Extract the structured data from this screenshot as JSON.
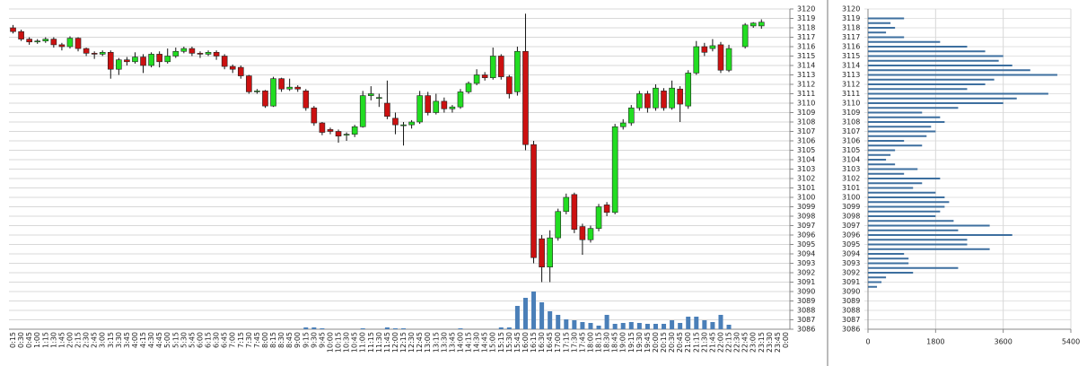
{
  "chart_data": [
    {
      "type": "candlestick",
      "categories": [
        "0:15",
        "0:30",
        "0:45",
        "1:00",
        "1:15",
        "1:30",
        "1:45",
        "2:00",
        "2:15",
        "2:30",
        "2:45",
        "3:00",
        "3:15",
        "3:30",
        "3:45",
        "4:00",
        "4:15",
        "4:30",
        "4:45",
        "5:00",
        "5:15",
        "5:30",
        "5:45",
        "6:00",
        "6:15",
        "6:30",
        "6:45",
        "7:00",
        "7:15",
        "7:30",
        "7:45",
        "8:00",
        "8:15",
        "8:30",
        "8:45",
        "9:00",
        "9:15",
        "9:30",
        "9:45",
        "10:00",
        "10:15",
        "10:30",
        "10:45",
        "11:00",
        "11:15",
        "11:30",
        "11:45",
        "12:00",
        "12:15",
        "12:30",
        "12:45",
        "13:00",
        "13:15",
        "13:30",
        "13:45",
        "14:00",
        "14:15",
        "14:30",
        "14:45",
        "15:00",
        "15:15",
        "15:30",
        "15:45",
        "16:00",
        "16:15",
        "16:30",
        "16:45",
        "17:00",
        "17:15",
        "17:30",
        "17:45",
        "18:00",
        "18:15",
        "18:30",
        "18:45",
        "19:00",
        "19:15",
        "19:30",
        "19:45",
        "20:00",
        "20:15",
        "20:30",
        "20:45",
        "21:00",
        "21:15",
        "21:30",
        "21:45",
        "22:00",
        "22:15",
        "22:30",
        "22:45",
        "23:00",
        "23:15",
        "23:30",
        "23:45",
        "0:00"
      ],
      "open": [
        3118.0,
        3117.6,
        3116.8,
        3116.5,
        3116.6,
        3116.8,
        3116.2,
        3116.0,
        3116.9,
        3115.8,
        3115.3,
        3115.2,
        3115.4,
        3113.6,
        3114.6,
        3114.4,
        3114.9,
        3114.0,
        3115.2,
        3114.4,
        3115.0,
        3115.5,
        3115.8,
        3115.3,
        3115.2,
        3115.4,
        3115.0,
        3113.9,
        3113.8,
        3112.9,
        3111.2,
        3111.3,
        3109.7,
        3112.6,
        3111.5,
        3111.7,
        3111.3,
        3109.5,
        3107.9,
        3107.2,
        3107.0,
        3106.6,
        3106.7,
        3107.5,
        3110.8,
        3110.5,
        3110.0,
        3108.4,
        3107.7,
        3107.7,
        3108.0,
        3110.8,
        3109.0,
        3110.2,
        3109.4,
        3109.6,
        3111.2,
        3112.1,
        3113.0,
        3112.7,
        3115.0,
        3112.8,
        3111.2,
        3115.5,
        3105.6,
        3095.6,
        3092.6,
        3095.7,
        3098.5,
        3100.3,
        3096.9,
        3095.5,
        3096.7,
        3099.2,
        3098.4,
        3107.5,
        3107.9,
        3109.5,
        3111.0,
        3109.5,
        3111.3,
        3109.5,
        3111.5,
        3109.7,
        3113.2,
        3116.0,
        3115.8,
        3116.2,
        3113.5,
        null,
        3116.0,
        3118.2,
        3118.2,
        null,
        null,
        null
      ],
      "close": [
        3117.6,
        3116.8,
        3116.5,
        3116.6,
        3116.8,
        3116.2,
        3116.0,
        3116.9,
        3115.8,
        3115.3,
        3115.2,
        3115.4,
        3113.6,
        3114.6,
        3114.4,
        3114.9,
        3114.0,
        3115.2,
        3114.4,
        3115.0,
        3115.5,
        3115.8,
        3115.3,
        3115.2,
        3115.4,
        3115.0,
        3113.9,
        3113.6,
        3112.9,
        3111.2,
        3111.3,
        3109.7,
        3112.6,
        3111.5,
        3111.7,
        3111.5,
        3109.5,
        3107.9,
        3106.9,
        3107.0,
        3106.5,
        3106.7,
        3107.5,
        3110.8,
        3111.0,
        3110.6,
        3108.6,
        3107.7,
        3107.7,
        3108.0,
        3110.8,
        3109.0,
        3110.2,
        3109.4,
        3109.6,
        3111.2,
        3112.1,
        3113.0,
        3112.7,
        3115.0,
        3112.8,
        3111.0,
        3115.5,
        3105.6,
        3093.6,
        3092.6,
        3095.7,
        3098.5,
        3100.0,
        3096.6,
        3095.5,
        3096.7,
        3099.0,
        3098.4,
        3107.5,
        3107.9,
        3109.5,
        3111.0,
        3109.5,
        3111.6,
        3109.5,
        3111.6,
        3109.9,
        3113.2,
        3116.0,
        3115.4,
        3116.1,
        3113.5,
        3115.8,
        null,
        3118.3,
        3118.5,
        3118.6,
        null,
        null,
        null
      ],
      "high": [
        3118.3,
        3117.8,
        3117.0,
        3116.8,
        3117.0,
        3117.0,
        3116.4,
        3117.1,
        3117.0,
        3115.9,
        3115.5,
        3115.6,
        3115.6,
        3114.8,
        3114.9,
        3115.4,
        3115.2,
        3115.4,
        3115.5,
        3115.8,
        3115.9,
        3116.0,
        3116.0,
        3115.5,
        3115.6,
        3115.6,
        3115.2,
        3114.1,
        3114.0,
        3113.0,
        3111.5,
        3111.4,
        3112.8,
        3112.7,
        3112.6,
        3111.9,
        3111.5,
        3109.7,
        3108.0,
        3107.4,
        3107.2,
        3106.9,
        3107.7,
        3111.3,
        3111.8,
        3111.0,
        3112.4,
        3109.0,
        3108.0,
        3108.2,
        3111.3,
        3111.2,
        3111.0,
        3110.6,
        3109.8,
        3111.5,
        3112.3,
        3113.6,
        3113.3,
        3115.9,
        3115.2,
        3113.0,
        3116.0,
        3119.5,
        3106.0,
        3096.0,
        3096.5,
        3098.8,
        3100.4,
        3100.5,
        3097.2,
        3097.0,
        3099.3,
        3099.5,
        3107.8,
        3108.3,
        3109.8,
        3111.3,
        3111.3,
        3112.0,
        3111.6,
        3112.4,
        3111.8,
        3113.5,
        3116.6,
        3116.4,
        3116.8,
        3116.5,
        3116.2,
        null,
        3118.5,
        3118.6,
        3118.9,
        null,
        null,
        null
      ],
      "low": [
        3117.4,
        3116.6,
        3116.2,
        3116.3,
        3116.4,
        3115.9,
        3115.6,
        3115.8,
        3115.5,
        3115.0,
        3114.7,
        3115.0,
        3112.6,
        3113.0,
        3114.0,
        3114.2,
        3113.2,
        3113.8,
        3113.8,
        3114.2,
        3114.8,
        3115.3,
        3115.0,
        3114.8,
        3115.0,
        3114.6,
        3113.6,
        3113.2,
        3112.6,
        3111.0,
        3111.0,
        3109.5,
        3109.6,
        3111.2,
        3111.3,
        3111.2,
        3109.2,
        3107.6,
        3106.6,
        3106.7,
        3105.8,
        3106.0,
        3106.4,
        3107.4,
        3110.3,
        3109.6,
        3108.3,
        3106.7,
        3105.5,
        3107.3,
        3107.8,
        3108.7,
        3108.8,
        3109.0,
        3109.0,
        3109.4,
        3111.0,
        3111.9,
        3112.4,
        3112.5,
        3112.5,
        3110.5,
        3110.8,
        3105.0,
        3093.0,
        3091.0,
        3091.0,
        3095.4,
        3098.2,
        3096.2,
        3093.9,
        3095.2,
        3096.4,
        3098.0,
        3098.2,
        3107.2,
        3107.6,
        3109.2,
        3109.0,
        3109.2,
        3109.2,
        3109.3,
        3108.0,
        3109.4,
        3113.0,
        3115.0,
        3115.5,
        3113.2,
        3113.3,
        null,
        3115.8,
        3118.0,
        3117.9,
        null,
        null,
        null
      ],
      "volume": [
        0,
        0,
        0,
        0,
        0,
        0,
        0,
        0,
        0,
        0,
        0,
        0,
        0,
        0,
        0,
        0,
        0,
        0,
        0,
        0,
        0,
        0,
        0,
        0,
        0,
        0,
        0,
        0,
        0,
        0,
        0,
        0,
        0,
        0,
        0,
        0,
        400,
        400,
        200,
        0,
        0,
        0,
        0,
        200,
        0,
        0,
        400,
        200,
        200,
        0,
        0,
        0,
        0,
        0,
        0,
        200,
        0,
        0,
        0,
        0,
        400,
        400,
        5200,
        7000,
        8400,
        6000,
        4000,
        3200,
        2200,
        2000,
        1600,
        1400,
        800,
        3200,
        1200,
        1400,
        1600,
        1400,
        1200,
        1200,
        1200,
        2000,
        1400,
        2800,
        2800,
        2000,
        1600,
        3200,
        1000,
        null,
        0,
        0,
        0,
        null,
        null,
        null
      ],
      "up_color": "#22dd22",
      "down_color": "#cc1111",
      "volume_color": "#4a7fb8",
      "ylim": [
        3086,
        3120
      ],
      "yticks": [
        3086,
        3087,
        3088,
        3089,
        3090,
        3091,
        3092,
        3093,
        3094,
        3095,
        3096,
        3097,
        3098,
        3099,
        3100,
        3101,
        3102,
        3103,
        3104,
        3105,
        3106,
        3107,
        3108,
        3109,
        3110,
        3111,
        3112,
        3113,
        3114,
        3115,
        3116,
        3117,
        3118,
        3119,
        3120
      ],
      "grid": true
    },
    {
      "type": "barh",
      "y": [
        3119,
        3118.5,
        3118,
        3117.5,
        3117,
        3116.5,
        3116,
        3115.5,
        3115,
        3114.5,
        3114,
        3113.5,
        3113,
        3112.5,
        3112,
        3111.5,
        3111,
        3110.5,
        3110,
        3109.5,
        3109,
        3108.5,
        3108,
        3107.5,
        3107,
        3106.5,
        3106,
        3105.5,
        3105,
        3104.5,
        3104,
        3103.5,
        3103,
        3102.5,
        3102,
        3101.5,
        3101,
        3100.5,
        3100,
        3099.5,
        3099,
        3098.5,
        3098,
        3097.5,
        3097,
        3096.5,
        3096,
        3095.5,
        3095,
        3094.5,
        3094,
        3093.5,
        3093,
        3092.5,
        3092,
        3091.5,
        3091,
        3090.5
      ],
      "values": [
        960,
        600,
        720,
        480,
        960,
        1920,
        2640,
        3120,
        3600,
        3480,
        3840,
        4320,
        5040,
        3360,
        3120,
        2640,
        4800,
        3960,
        3600,
        2400,
        1440,
        1920,
        2040,
        1680,
        1800,
        1560,
        960,
        1440,
        720,
        600,
        480,
        720,
        1320,
        960,
        1920,
        1440,
        1200,
        1800,
        2040,
        2160,
        2040,
        1920,
        1800,
        2280,
        3240,
        2400,
        3840,
        2640,
        2640,
        3240,
        960,
        1080,
        1080,
        2400,
        1200,
        480,
        360,
        240
      ],
      "color": "#3d6f9f",
      "xlim": [
        0,
        5400
      ],
      "xticks": [
        0,
        1800,
        3600,
        5400
      ],
      "ylim": [
        3086,
        3120
      ],
      "yticks": [
        3086,
        3087,
        3088,
        3089,
        3090,
        3091,
        3092,
        3093,
        3094,
        3095,
        3096,
        3097,
        3098,
        3099,
        3100,
        3101,
        3102,
        3103,
        3104,
        3105,
        3106,
        3107,
        3108,
        3109,
        3110,
        3111,
        3112,
        3113,
        3114,
        3115,
        3116,
        3117,
        3118,
        3119,
        3120
      ],
      "grid": true
    }
  ]
}
